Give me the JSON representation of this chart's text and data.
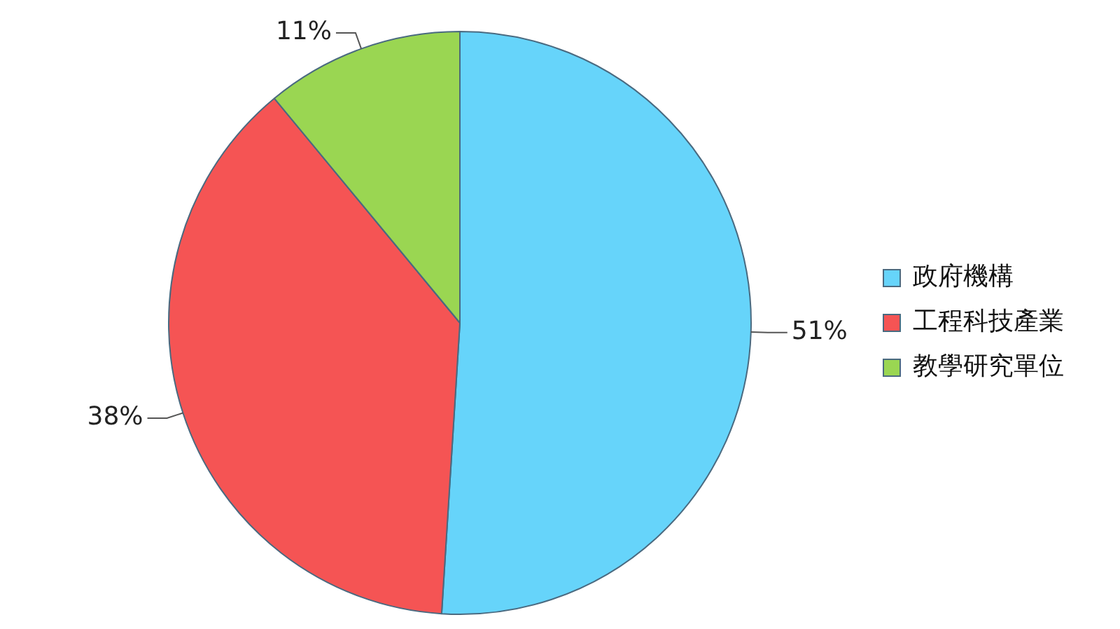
{
  "chart_data": {
    "type": "pie",
    "categories": [
      "政府機構",
      "工程科技產業",
      "教學研究單位"
    ],
    "values": [
      51,
      38,
      11
    ],
    "colors": [
      "#66d4fa",
      "#f55454",
      "#9ad652"
    ],
    "value_labels": [
      "51%",
      "38%",
      "11%"
    ],
    "legend": "right"
  }
}
